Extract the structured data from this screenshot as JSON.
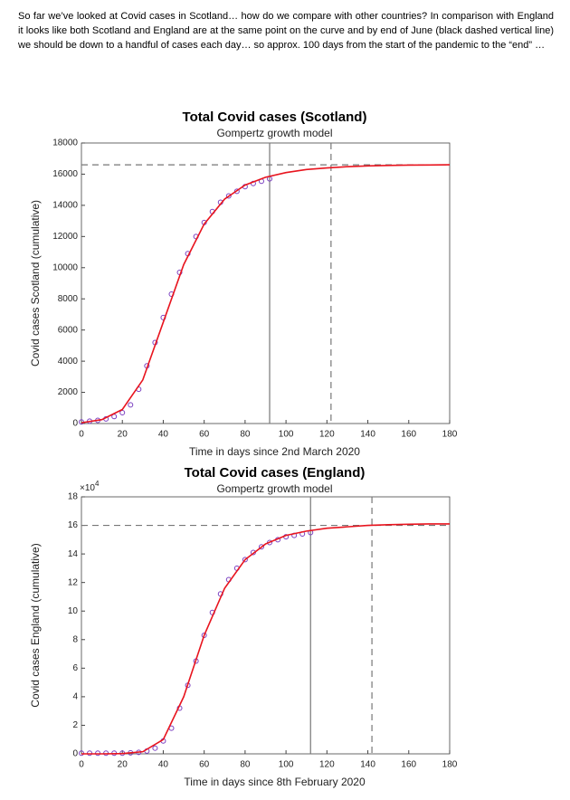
{
  "text": "So far we’ve looked at Covid cases in Scotland… how do we compare with other countries? In comparison with England it looks like both Scotland and England are at the same point on the curve and by end of June (black dashed vertical line) we should be down to a handful of cases each day… so approx. 100 days from the start of the pandemic to the “end” …",
  "chart_data": [
    {
      "type": "line",
      "title": "Total Covid cases (Scotland)",
      "subtitle": "Gompertz growth model",
      "xlabel": "Time in days since 2nd March 2020",
      "ylabel": "Covid cases Scotland (cumulative)",
      "xlim": [
        0,
        180
      ],
      "xticks": [
        0,
        20,
        40,
        60,
        80,
        100,
        120,
        140,
        160,
        180
      ],
      "ylim": [
        0,
        18000
      ],
      "yticks": [
        0,
        2000,
        4000,
        6000,
        8000,
        10000,
        12000,
        14000,
        16000,
        18000
      ],
      "series": [
        {
          "color": "#7a3fc0",
          "marker": "circle",
          "x": [
            0,
            4,
            8,
            12,
            16,
            20,
            24,
            28,
            32,
            36,
            40,
            44,
            48,
            52,
            56,
            60,
            64,
            68,
            72,
            76,
            80,
            84,
            88,
            92
          ],
          "values": [
            100,
            150,
            200,
            300,
            450,
            700,
            1200,
            2200,
            3700,
            5200,
            6800,
            8300,
            9700,
            10900,
            12000,
            12900,
            13600,
            14200,
            14600,
            14900,
            15200,
            15400,
            15550,
            15700
          ]
        },
        {
          "color": "#e8141e",
          "marker": "line",
          "x": [
            0,
            10,
            20,
            30,
            40,
            50,
            60,
            70,
            80,
            90,
            100,
            110,
            120,
            130,
            140,
            150,
            160,
            170,
            180
          ],
          "values": [
            50,
            250,
            900,
            2800,
            6500,
            10200,
            12800,
            14400,
            15300,
            15800,
            16100,
            16300,
            16400,
            16480,
            16530,
            16560,
            16580,
            16590,
            16600
          ]
        }
      ],
      "hlines": [
        {
          "value": 16600,
          "style": "dashed"
        }
      ],
      "vlines": [
        {
          "value": 92,
          "style": "solid"
        },
        {
          "value": 122,
          "style": "dashed"
        }
      ]
    },
    {
      "type": "line",
      "title": "Total Covid cases (England)",
      "subtitle": "Gompertz growth model",
      "xlabel": "Time in days since 8th February 2020",
      "ylabel": "Covid cases England (cumulative)",
      "y_multiplier": {
        "base": "×10",
        "exponent": "4"
      },
      "xlim": [
        0,
        180
      ],
      "xticks": [
        0,
        20,
        40,
        60,
        80,
        100,
        120,
        140,
        160,
        180
      ],
      "ylim": [
        0,
        18
      ],
      "yticks": [
        0,
        2,
        4,
        6,
        8,
        10,
        12,
        14,
        16,
        18
      ],
      "series": [
        {
          "color": "#7a3fc0",
          "marker": "circle",
          "x": [
            0,
            4,
            8,
            12,
            16,
            20,
            24,
            28,
            32,
            36,
            40,
            44,
            48,
            52,
            56,
            60,
            64,
            68,
            72,
            76,
            80,
            84,
            88,
            92,
            96,
            100,
            104,
            108,
            112
          ],
          "values": [
            0.05,
            0.05,
            0.05,
            0.05,
            0.05,
            0.05,
            0.07,
            0.1,
            0.2,
            0.4,
            0.9,
            1.8,
            3.2,
            4.8,
            6.5,
            8.3,
            9.9,
            11.2,
            12.2,
            13.0,
            13.6,
            14.1,
            14.5,
            14.8,
            15.0,
            15.2,
            15.3,
            15.4,
            15.5
          ]
        },
        {
          "color": "#e8141e",
          "marker": "line",
          "x": [
            0,
            10,
            20,
            30,
            40,
            50,
            60,
            70,
            80,
            90,
            100,
            110,
            120,
            130,
            140,
            150,
            160,
            170,
            180
          ],
          "values": [
            0,
            0,
            0.02,
            0.15,
            1.0,
            4.0,
            8.3,
            11.6,
            13.6,
            14.7,
            15.3,
            15.6,
            15.8,
            15.9,
            16.0,
            16.05,
            16.08,
            16.1,
            16.1
          ]
        }
      ],
      "hlines": [
        {
          "value": 16,
          "style": "dashed"
        }
      ],
      "vlines": [
        {
          "value": 112,
          "style": "solid"
        },
        {
          "value": 142,
          "style": "dashed"
        }
      ]
    }
  ]
}
